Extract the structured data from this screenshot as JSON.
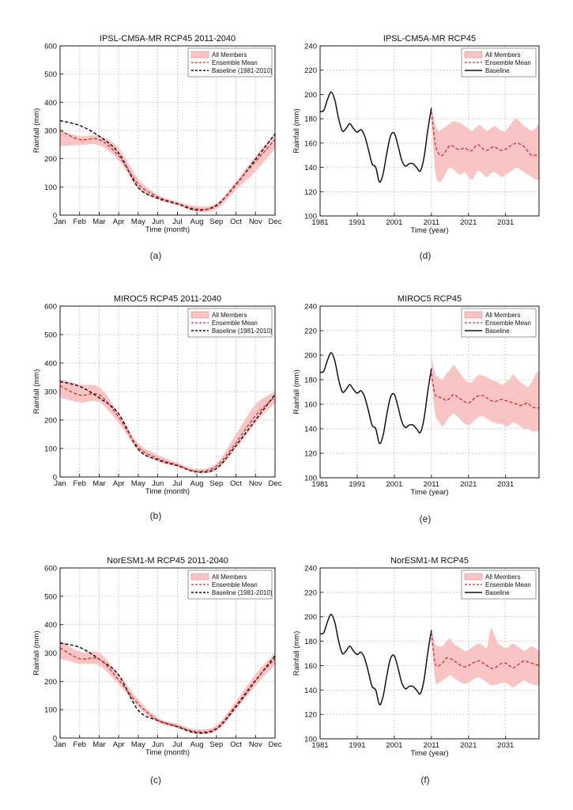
{
  "chart_data": [
    {
      "id": "a",
      "type": "line",
      "title": "IPSL-CM5A-MR RCP45 2011-2040",
      "xlabel": "Time (month)",
      "ylabel": "Rainfall (mm)",
      "caption": "(a)",
      "ylim": [
        0,
        600
      ],
      "yticks": [
        0,
        100,
        200,
        300,
        400,
        500,
        600
      ],
      "categories": [
        "Jan",
        "Feb",
        "Mar",
        "Apr",
        "May",
        "Jun",
        "Jul",
        "Aug",
        "Sep",
        "Oct",
        "Nov",
        "Dec"
      ],
      "grid": true,
      "legend_position": "top-right",
      "legend": [
        "All Members",
        "Ensemble Mean",
        "Baseline (1981-2010)"
      ],
      "band_upper": [
        300,
        280,
        282,
        238,
        128,
        72,
        48,
        32,
        42,
        120,
        210,
        290
      ],
      "band_lower": [
        245,
        248,
        248,
        195,
        95,
        55,
        35,
        12,
        22,
        90,
        155,
        235
      ],
      "ensemble_mean": [
        300,
        268,
        268,
        210,
        110,
        65,
        42,
        22,
        32,
        110,
        190,
        268
      ],
      "baseline": [
        335,
        318,
        280,
        220,
        98,
        60,
        40,
        18,
        35,
        108,
        198,
        288
      ],
      "colors": {
        "band": "#f9c4c4",
        "mean": "#d42a2a",
        "baseline": "#111111"
      }
    },
    {
      "id": "b",
      "type": "line",
      "title": "MIROC5 RCP45 2011-2040",
      "xlabel": "Time (month)",
      "ylabel": "Rainfall (mm)",
      "caption": "(b)",
      "ylim": [
        0,
        600
      ],
      "yticks": [
        0,
        100,
        200,
        300,
        400,
        500,
        600
      ],
      "categories": [
        "Jan",
        "Feb",
        "Mar",
        "Apr",
        "May",
        "Jun",
        "Jul",
        "Aug",
        "Sep",
        "Oct",
        "Nov",
        "Dec"
      ],
      "grid": true,
      "legend_position": "top-right",
      "legend": [
        "All Members",
        "Ensemble Mean",
        "Baseline (1981-2010)"
      ],
      "band_upper": [
        345,
        325,
        315,
        225,
        118,
        78,
        50,
        28,
        48,
        150,
        255,
        300
      ],
      "band_lower": [
        280,
        262,
        262,
        190,
        95,
        55,
        35,
        14,
        25,
        100,
        190,
        260
      ],
      "ensemble_mean": [
        320,
        288,
        288,
        210,
        105,
        65,
        42,
        20,
        38,
        120,
        215,
        282
      ],
      "baseline": [
        335,
        318,
        278,
        222,
        97,
        60,
        40,
        18,
        30,
        110,
        200,
        290
      ],
      "colors": {
        "band": "#f9c4c4",
        "mean": "#d42a2a",
        "baseline": "#111111"
      }
    },
    {
      "id": "c",
      "type": "line",
      "title": "NorESM1-M RCP45 2011-2040",
      "xlabel": "Time (month)",
      "ylabel": "Rainfall (mm)",
      "caption": "(c)",
      "ylim": [
        0,
        600
      ],
      "yticks": [
        0,
        100,
        200,
        300,
        400,
        500,
        600
      ],
      "categories": [
        "Jan",
        "Feb",
        "Mar",
        "Apr",
        "May",
        "Jun",
        "Jul",
        "Aug",
        "Sep",
        "Oct",
        "Nov",
        "Dec"
      ],
      "grid": true,
      "legend_position": "top-right",
      "legend": [
        "All Members",
        "Ensemble Mean",
        "Baseline (1981-2010)"
      ],
      "band_upper": [
        345,
        305,
        300,
        225,
        135,
        72,
        50,
        30,
        45,
        130,
        225,
        300
      ],
      "band_lower": [
        280,
        262,
        255,
        190,
        110,
        55,
        35,
        14,
        25,
        100,
        185,
        258
      ],
      "ensemble_mean": [
        318,
        280,
        278,
        205,
        120,
        63,
        42,
        22,
        35,
        115,
        205,
        280
      ],
      "baseline": [
        335,
        320,
        278,
        222,
        98,
        62,
        40,
        18,
        32,
        110,
        202,
        290
      ],
      "colors": {
        "band": "#f9c4c4",
        "mean": "#d42a2a",
        "baseline": "#111111"
      }
    },
    {
      "id": "d",
      "type": "line",
      "title": "IPSL-CM5A-MR RCP45",
      "xlabel": "Time (year)",
      "ylabel": "Rainfall (mm)",
      "caption": "(d)",
      "xlim": [
        1981,
        2040
      ],
      "xticks": [
        1981,
        1991,
        2001,
        2011,
        2021,
        2031
      ],
      "ylim": [
        100,
        240
      ],
      "yticks": [
        100,
        120,
        140,
        160,
        180,
        200,
        220,
        240
      ],
      "grid": true,
      "legend_position": "top-right",
      "legend": [
        "All Members",
        "Ensemble Mean",
        "Baseline"
      ],
      "baseline": {
        "x": [
          1981,
          1982,
          1983,
          1984,
          1985,
          1986,
          1987,
          1988,
          1989,
          1990,
          1991,
          1992,
          1993,
          1994,
          1995,
          1996,
          1997,
          1998,
          1999,
          2000,
          2001,
          2002,
          2003,
          2004,
          2005,
          2006,
          2007,
          2008,
          2009,
          2010,
          2011
        ],
        "y": [
          186,
          187,
          196,
          202,
          195,
          180,
          170,
          172,
          176,
          172,
          169,
          171,
          166,
          155,
          143,
          140,
          128,
          135,
          152,
          166,
          168,
          158,
          146,
          141,
          143,
          143,
          140,
          137,
          148,
          170,
          189
        ]
      },
      "projection_x": [
        2011,
        2012,
        2013,
        2014,
        2015,
        2016,
        2017,
        2018,
        2019,
        2020,
        2021,
        2022,
        2023,
        2024,
        2025,
        2026,
        2027,
        2028,
        2029,
        2030,
        2031,
        2032,
        2033,
        2034,
        2035,
        2036,
        2037,
        2038,
        2039,
        2040
      ],
      "ensemble_mean": [
        186,
        160,
        151,
        150,
        154,
        158,
        157,
        155,
        155,
        156,
        154,
        154,
        158,
        158,
        155,
        154,
        156,
        157,
        155,
        154,
        155,
        157,
        159,
        160,
        159,
        157,
        153,
        150,
        150,
        150
      ],
      "band_upper": [
        190,
        176,
        170,
        172,
        174,
        176,
        178,
        177,
        176,
        174,
        172,
        170,
        173,
        175,
        172,
        170,
        172,
        174,
        172,
        170,
        170,
        174,
        178,
        180,
        177,
        174,
        172,
        170,
        172,
        176
      ],
      "band_lower": [
        182,
        138,
        128,
        130,
        136,
        140,
        138,
        135,
        134,
        136,
        132,
        130,
        135,
        137,
        134,
        132,
        135,
        136,
        134,
        132,
        134,
        136,
        138,
        140,
        138,
        136,
        134,
        132,
        130,
        130
      ],
      "colors": {
        "band": "#f9c4c4",
        "mean": "#d42a2a",
        "baseline": "#111111"
      }
    },
    {
      "id": "e",
      "type": "line",
      "title": "MIROC5 RCP45",
      "xlabel": "Time (year)",
      "ylabel": "Rainfall (mm)",
      "caption": "(e)",
      "xlim": [
        1981,
        2040
      ],
      "xticks": [
        1981,
        1991,
        2001,
        2011,
        2021,
        2031
      ],
      "ylim": [
        100,
        240
      ],
      "yticks": [
        100,
        120,
        140,
        160,
        180,
        200,
        220,
        240
      ],
      "grid": true,
      "legend_position": "top-right",
      "legend": [
        "All Members",
        "Ensemble Mean",
        "Baseline"
      ],
      "baseline": {
        "x": [
          1981,
          1982,
          1983,
          1984,
          1985,
          1986,
          1987,
          1988,
          1989,
          1990,
          1991,
          1992,
          1993,
          1994,
          1995,
          1996,
          1997,
          1998,
          1999,
          2000,
          2001,
          2002,
          2003,
          2004,
          2005,
          2006,
          2007,
          2008,
          2009,
          2010,
          2011
        ],
        "y": [
          186,
          187,
          196,
          202,
          195,
          180,
          170,
          172,
          176,
          172,
          169,
          171,
          166,
          155,
          143,
          140,
          128,
          135,
          152,
          166,
          168,
          158,
          146,
          141,
          143,
          143,
          140,
          137,
          148,
          170,
          189
        ]
      },
      "projection_x": [
        2011,
        2012,
        2013,
        2014,
        2015,
        2016,
        2017,
        2018,
        2019,
        2020,
        2021,
        2022,
        2023,
        2024,
        2025,
        2026,
        2027,
        2028,
        2029,
        2030,
        2031,
        2032,
        2033,
        2034,
        2035,
        2036,
        2037,
        2038,
        2039,
        2040
      ],
      "ensemble_mean": [
        185,
        168,
        166,
        165,
        163,
        165,
        168,
        166,
        164,
        162,
        161,
        163,
        166,
        167,
        167,
        165,
        163,
        162,
        163,
        164,
        163,
        162,
        161,
        160,
        159,
        160,
        161,
        158,
        157,
        157
      ],
      "band_upper": [
        200,
        185,
        182,
        180,
        185,
        188,
        192,
        188,
        184,
        180,
        178,
        178,
        182,
        184,
        183,
        182,
        180,
        179,
        178,
        176,
        178,
        180,
        184,
        181,
        178,
        176,
        174,
        178,
        184,
        188
      ],
      "band_lower": [
        180,
        152,
        146,
        142,
        146,
        150,
        152,
        150,
        147,
        144,
        143,
        145,
        148,
        150,
        150,
        148,
        146,
        145,
        144,
        144,
        142,
        143,
        145,
        144,
        142,
        140,
        140,
        138,
        138,
        138
      ],
      "colors": {
        "band": "#f9c4c4",
        "mean": "#d42a2a",
        "baseline": "#111111"
      }
    },
    {
      "id": "f",
      "type": "line",
      "title": "NorESM1-M RCP45",
      "xlabel": "Time (year)",
      "ylabel": "Rainfall (mm)",
      "caption": "(f)",
      "xlim": [
        1981,
        2040
      ],
      "xticks": [
        1981,
        1991,
        2001,
        2011,
        2021,
        2031
      ],
      "ylim": [
        100,
        240
      ],
      "yticks": [
        100,
        120,
        140,
        160,
        180,
        200,
        220,
        240
      ],
      "grid": true,
      "legend_position": "top-right",
      "legend": [
        "All Members",
        "Ensemble Mean",
        "Baseline"
      ],
      "baseline": {
        "x": [
          1981,
          1982,
          1983,
          1984,
          1985,
          1986,
          1987,
          1988,
          1989,
          1990,
          1991,
          1992,
          1993,
          1994,
          1995,
          1996,
          1997,
          1998,
          1999,
          2000,
          2001,
          2002,
          2003,
          2004,
          2005,
          2006,
          2007,
          2008,
          2009,
          2010,
          2011
        ],
        "y": [
          186,
          187,
          196,
          202,
          195,
          180,
          170,
          172,
          176,
          172,
          169,
          171,
          166,
          155,
          143,
          140,
          128,
          135,
          152,
          166,
          168,
          158,
          146,
          141,
          143,
          143,
          140,
          137,
          148,
          170,
          189
        ]
      },
      "projection_x": [
        2011,
        2012,
        2013,
        2014,
        2015,
        2016,
        2017,
        2018,
        2019,
        2020,
        2021,
        2022,
        2023,
        2024,
        2025,
        2026,
        2027,
        2028,
        2029,
        2030,
        2031,
        2032,
        2033,
        2034,
        2035,
        2036,
        2037,
        2038,
        2039,
        2040
      ],
      "ensemble_mean": [
        187,
        162,
        160,
        162,
        166,
        166,
        164,
        162,
        160,
        159,
        160,
        162,
        163,
        164,
        162,
        160,
        158,
        158,
        160,
        162,
        162,
        160,
        158,
        160,
        162,
        164,
        163,
        162,
        161,
        160
      ],
      "band_upper": [
        190,
        178,
        176,
        176,
        180,
        182,
        178,
        176,
        174,
        172,
        173,
        175,
        177,
        178,
        176,
        175,
        190,
        185,
        178,
        176,
        174,
        176,
        178,
        176,
        174,
        172,
        174,
        176,
        174,
        172
      ],
      "band_lower": [
        185,
        148,
        146,
        148,
        150,
        152,
        150,
        148,
        146,
        145,
        146,
        148,
        150,
        150,
        148,
        146,
        144,
        144,
        145,
        146,
        146,
        144,
        142,
        144,
        146,
        148,
        146,
        145,
        144,
        144
      ],
      "colors": {
        "band": "#f9c4c4",
        "mean": "#d42a2a",
        "baseline": "#111111"
      }
    }
  ]
}
